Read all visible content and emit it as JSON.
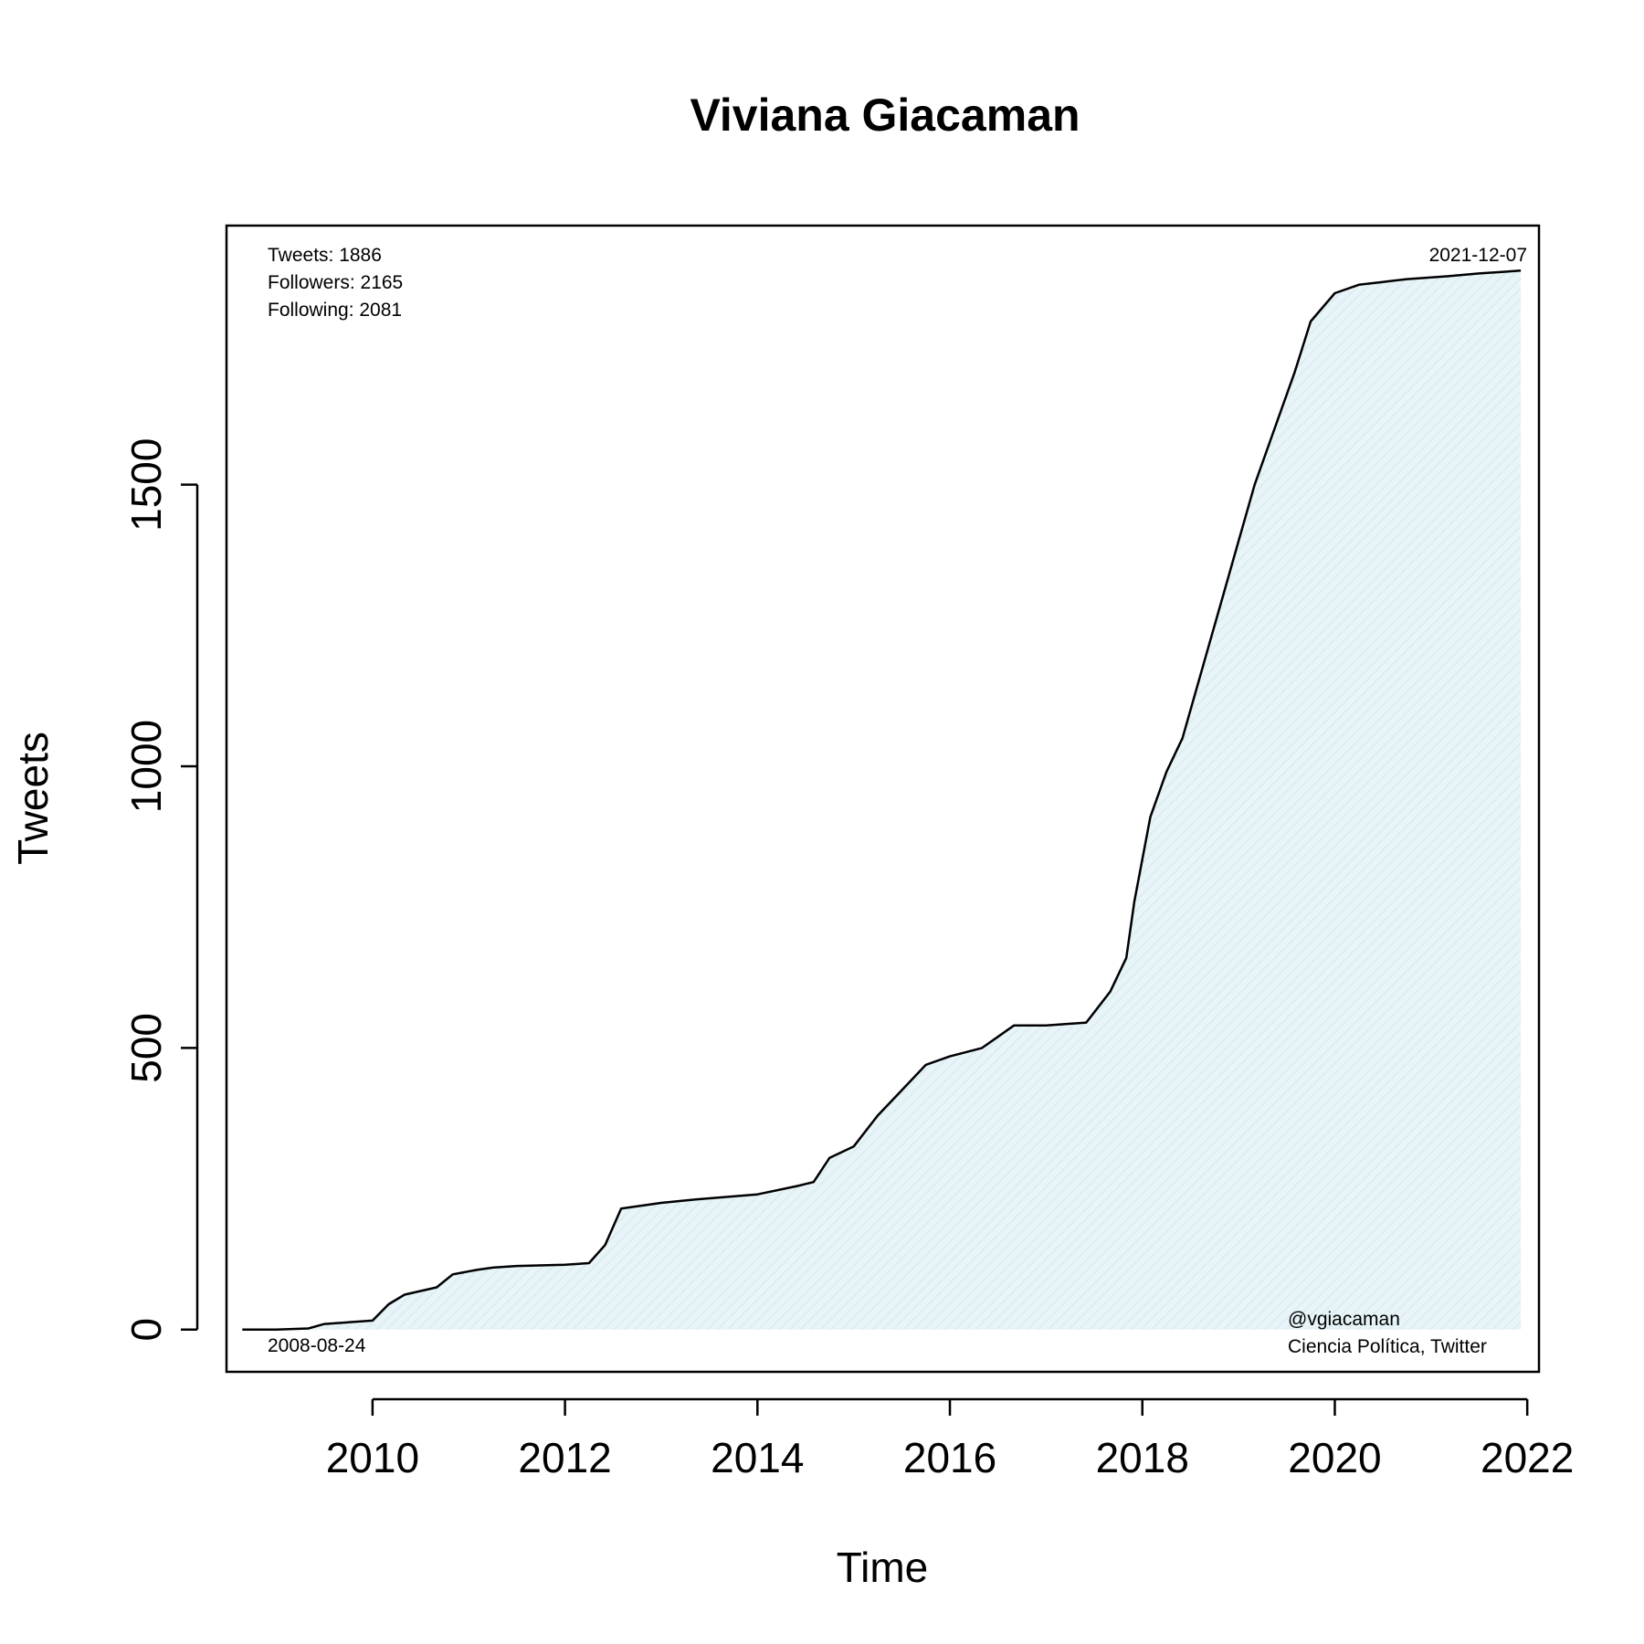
{
  "chart_data": {
    "type": "area",
    "title": "Viviana Giacaman",
    "xlabel": "Time",
    "ylabel": "Tweets",
    "xlim": [
      "2008-06-25",
      "2022-02-15"
    ],
    "ylim": [
      -75,
      1960
    ],
    "x_ticks": [
      "2010",
      "2012",
      "2014",
      "2016",
      "2018",
      "2020",
      "2022"
    ],
    "y_ticks": [
      "0",
      "500",
      "1000",
      "1500"
    ],
    "grid": false,
    "fill_color": "#e8f4f7",
    "line_color": "#000000",
    "annotations": {
      "stats": [
        "Tweets: 1886",
        "Followers: 2165",
        "Following: 2081"
      ],
      "start_date": "2008-08-24",
      "end_date": "2021-12-07",
      "handle": "@vgiacaman",
      "category": "Ciencia Política, Twitter"
    },
    "series": [
      {
        "x": [
          "2008-08-24",
          "2009-01-01",
          "2009-05-01",
          "2009-07-01",
          "2010-01-01",
          "2010-03-01",
          "2010-05-01",
          "2010-09-01",
          "2010-11-01",
          "2011-02-01",
          "2011-04-01",
          "2011-07-01",
          "2012-01-01",
          "2012-04-01",
          "2012-06-01",
          "2012-08-01",
          "2013-01-01",
          "2013-06-01",
          "2014-01-01",
          "2014-06-01",
          "2014-08-01",
          "2014-10-01",
          "2015-01-01",
          "2015-04-01",
          "2015-07-01",
          "2015-10-01",
          "2016-01-01",
          "2016-05-01",
          "2016-09-01",
          "2017-01-01",
          "2017-06-01",
          "2017-09-01",
          "2017-11-01",
          "2017-12-01",
          "2018-02-01",
          "2018-04-01",
          "2018-06-01",
          "2018-09-01",
          "2018-11-01",
          "2019-01-01",
          "2019-03-01",
          "2019-06-01",
          "2019-08-01",
          "2019-10-01",
          "2020-01-01",
          "2020-04-01",
          "2020-07-01",
          "2020-10-01",
          "2021-03-01",
          "2021-07-01",
          "2021-12-07"
        ],
        "y": [
          0,
          0,
          2,
          10,
          16,
          45,
          62,
          75,
          98,
          106,
          110,
          113,
          115,
          118,
          150,
          215,
          225,
          232,
          240,
          255,
          262,
          305,
          325,
          380,
          425,
          470,
          485,
          500,
          540,
          540,
          545,
          600,
          660,
          760,
          910,
          990,
          1050,
          1200,
          1300,
          1400,
          1500,
          1620,
          1700,
          1790,
          1840,
          1855,
          1860,
          1865,
          1870,
          1875,
          1880
        ]
      }
    ]
  }
}
